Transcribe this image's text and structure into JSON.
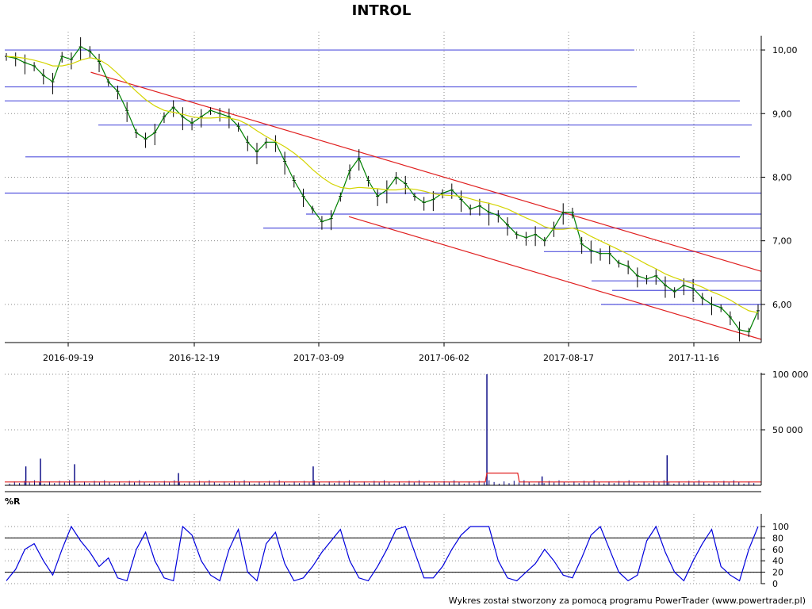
{
  "title": "INTROL",
  "footer": "Wykres został stworzony za pomocą programu PowerTrader (www.powertrader.pl)",
  "colors": {
    "candles": "#000000",
    "short_ma": "#008000",
    "long_ma": "#d4d400",
    "support_resistance": "#5555dd",
    "trend_channel": "#e02020",
    "volume_bars": "#000080",
    "volume_avg": "#e02020",
    "williams_r": "#0000dd"
  },
  "chart_data": [
    {
      "type": "line",
      "panel": "price",
      "ylim": [
        5.4,
        10.2
      ],
      "y_ticks": [
        "10,00",
        "9,00",
        "8,00",
        "7,00",
        "6,00"
      ],
      "y_tick_values": [
        10.0,
        9.0,
        8.0,
        7.0,
        6.0
      ],
      "x_ticks": [
        "2016-09-19",
        "2016-12-19",
        "2017-03-09",
        "2017-06-02",
        "2017-08-17",
        "2017-11-16"
      ],
      "series": [
        {
          "values": [
            9.9,
            9.87,
            9.8,
            9.75,
            9.6,
            9.5,
            9.9,
            9.85,
            10.05,
            9.98,
            9.82,
            9.5,
            9.35,
            9.05,
            8.7,
            8.6,
            8.7,
            8.95,
            9.1,
            8.95,
            8.85,
            8.95,
            9.05,
            9.0,
            8.95,
            8.8,
            8.55,
            8.4,
            8.55,
            8.55,
            8.25,
            7.95,
            7.7,
            7.5,
            7.3,
            7.35,
            7.7,
            8.1,
            8.3,
            7.95,
            7.7,
            7.8,
            8.0,
            7.9,
            7.7,
            7.6,
            7.65,
            7.75,
            7.8,
            7.65,
            7.5,
            7.55,
            7.45,
            7.4,
            7.25,
            7.1,
            7.05,
            7.1,
            7.0,
            7.2,
            7.45,
            7.45,
            6.95,
            6.85,
            6.8,
            6.8,
            6.65,
            6.6,
            6.45,
            6.4,
            6.45,
            6.3,
            6.2,
            6.3,
            6.25,
            6.1,
            6.0,
            5.95,
            5.8,
            5.6,
            5.57,
            5.9
          ]
        },
        {
          "values": [
            9.9,
            9.89,
            9.87,
            9.84,
            9.8,
            9.75,
            9.75,
            9.78,
            9.84,
            9.88,
            9.85,
            9.76,
            9.63,
            9.49,
            9.35,
            9.22,
            9.12,
            9.05,
            9.02,
            8.99,
            8.95,
            8.93,
            8.93,
            8.94,
            8.93,
            8.9,
            8.83,
            8.73,
            8.64,
            8.56,
            8.48,
            8.38,
            8.26,
            8.12,
            8.0,
            7.9,
            7.84,
            7.82,
            7.84,
            7.83,
            7.82,
            7.8,
            7.8,
            7.82,
            7.81,
            7.78,
            7.74,
            7.72,
            7.71,
            7.7,
            7.66,
            7.62,
            7.59,
            7.55,
            7.5,
            7.43,
            7.36,
            7.3,
            7.22,
            7.18,
            7.18,
            7.2,
            7.15,
            7.07,
            7.0,
            6.93,
            6.86,
            6.79,
            6.71,
            6.63,
            6.56,
            6.48,
            6.42,
            6.37,
            6.33,
            6.27,
            6.2,
            6.14,
            6.07,
            5.98,
            5.9,
            5.87
          ]
        }
      ],
      "support_resistance_levels": [
        10.0,
        9.42,
        9.2,
        8.82,
        8.32,
        7.75,
        7.42,
        7.2,
        6.83,
        6.37,
        6.22,
        6.0
      ],
      "trend_channel": {
        "upper": [
          {
            "x": "2016-10-20",
            "y": 9.65
          },
          {
            "x": "2017-12-07",
            "y": 6.52
          }
        ],
        "lower": [
          {
            "x": "2017-03-28",
            "y": 7.38
          },
          {
            "x": "2017-12-07",
            "y": 5.45
          }
        ]
      },
      "grid": true
    },
    {
      "type": "bar",
      "panel": "volume",
      "ylim": [
        0,
        100000
      ],
      "y_ticks": [
        "100 000",
        "50 000"
      ],
      "y_tick_values": [
        100000,
        50000
      ],
      "spikes": [
        {
          "x": "2016-09-10",
          "value": 17000
        },
        {
          "x": "2016-09-19",
          "value": 24000
        },
        {
          "x": "2016-10-10",
          "value": 19000
        },
        {
          "x": "2016-12-13",
          "value": 11000
        },
        {
          "x": "2017-03-06",
          "value": 17000
        },
        {
          "x": "2017-06-21",
          "value": 100000
        },
        {
          "x": "2017-07-25",
          "value": 8000
        },
        {
          "x": "2017-10-10",
          "value": 27000
        }
      ],
      "average_line_level": 3000,
      "average_line_bump": {
        "from": "2017-06-21",
        "to": "2017-07-10",
        "value": 11000
      }
    },
    {
      "type": "line",
      "panel": "indicator",
      "label": "%R",
      "ylim": [
        0,
        100
      ],
      "y_ticks": [
        "100",
        "80",
        "60",
        "40",
        "20",
        "0"
      ],
      "y_tick_values": [
        100,
        80,
        60,
        40,
        20,
        0
      ],
      "reference_lines": [
        80,
        20
      ],
      "series": [
        {
          "values": [
            5,
            25,
            60,
            70,
            40,
            15,
            60,
            100,
            75,
            55,
            30,
            45,
            10,
            5,
            60,
            90,
            40,
            10,
            5,
            100,
            85,
            40,
            15,
            5,
            60,
            95,
            20,
            5,
            70,
            90,
            35,
            5,
            10,
            30,
            55,
            75,
            95,
            40,
            10,
            5,
            30,
            60,
            95,
            100,
            55,
            10,
            10,
            30,
            60,
            85,
            100,
            100,
            100,
            40,
            10,
            5,
            20,
            35,
            60,
            40,
            15,
            10,
            45,
            85,
            100,
            60,
            20,
            5,
            15,
            75,
            100,
            55,
            20,
            5,
            40,
            70,
            95,
            30,
            15,
            5,
            60,
            100
          ]
        }
      ]
    }
  ]
}
